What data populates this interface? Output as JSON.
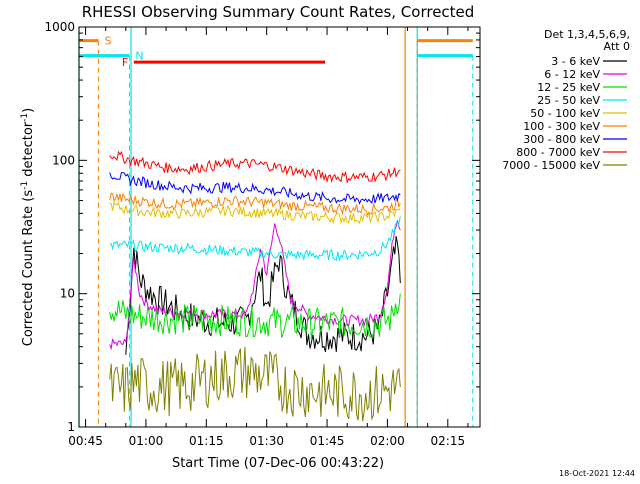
{
  "chart_data": {
    "type": "line",
    "title": "RHESSI Observing Summary Count Rates, Corrected",
    "xlabel": "Start Time (07-Dec-06 00:43:22)",
    "ylabel_main": "Corrected Count Rate (s",
    "ylabel_sup1": "-1",
    "ylabel_mid": " detector",
    "ylabel_sup2": "-1",
    "ylabel_end": ")",
    "y_scale": "log",
    "xlim_minutes": [
      43.37,
      143.0
    ],
    "ylim": [
      1,
      1000
    ],
    "x_ticks": [
      {
        "minute": 45,
        "label": "00:45"
      },
      {
        "minute": 60,
        "label": "01:00"
      },
      {
        "minute": 75,
        "label": "01:15"
      },
      {
        "minute": 90,
        "label": "01:30"
      },
      {
        "minute": 105,
        "label": "01:45"
      },
      {
        "minute": 120,
        "label": "02:00"
      },
      {
        "minute": 135,
        "label": "02:15"
      }
    ],
    "y_ticks": [
      {
        "value": 1,
        "label": "1"
      },
      {
        "value": 10,
        "label": "10"
      },
      {
        "value": 100,
        "label": "100"
      },
      {
        "value": 1000,
        "label": "1000"
      }
    ],
    "legend": {
      "position": "right",
      "header_line1": "Det 1,3,4,5,6,9,",
      "header_line2": "Att 0"
    },
    "flags": [
      {
        "label": "S",
        "color": "#ff7f00",
        "level": 790,
        "segments": [
          [
            43.37,
            48.2
          ],
          [
            127.4,
            141.2
          ]
        ],
        "line_minutes": [
          48.2,
          127.4
        ],
        "line_style": "dashed"
      },
      {
        "label": "N",
        "color": "#00e5ee",
        "level": 610,
        "segments": [
          [
            43.37,
            55.9
          ],
          [
            127.4,
            141.2
          ]
        ],
        "line_minutes": [
          55.9,
          141.2
        ],
        "line_style": "dashed"
      },
      {
        "label": "F",
        "color": "#ff0000",
        "level": 545,
        "segments": [
          [
            57.0,
            104.5
          ]
        ],
        "line_minutes": [],
        "line_style": "none"
      }
    ],
    "vertical_markers": [
      {
        "minute": 43.37,
        "color": "#00e5ee",
        "style": "solid"
      },
      {
        "minute": 56.3,
        "color": "#00e5ee",
        "style": "solid"
      },
      {
        "minute": 127.4,
        "color": "#00e5ee",
        "style": "solid"
      },
      {
        "minute": 124.4,
        "color": "#ff7f00",
        "style": "solid"
      }
    ],
    "series": [
      {
        "name": "3 - 6 keV",
        "color": "#000000",
        "x": [
          51,
          55,
          57,
          58.5,
          60,
          63,
          66,
          70,
          75,
          80,
          85,
          87,
          88.5,
          90,
          92,
          93,
          96,
          100,
          105,
          110,
          115,
          118,
          120,
          121.5,
          122.5,
          123.2
        ],
        "y": [
          null,
          3.5,
          22,
          13,
          11,
          9,
          8,
          6.8,
          6.3,
          6,
          6.2,
          10,
          14,
          8,
          14,
          18,
          8.5,
          5,
          4.8,
          4.8,
          4.8,
          5.5,
          10,
          18,
          22,
          12
        ]
      },
      {
        "name": "6 - 12 keV",
        "color": "#e000e0",
        "x": [
          51,
          55,
          57,
          58.5,
          60,
          63,
          66,
          70,
          75,
          80,
          85,
          87,
          88.5,
          90,
          92,
          93,
          96,
          100,
          105,
          110,
          115,
          118,
          120,
          121.5,
          122.5,
          123.2
        ],
        "y": [
          4.2,
          4.2,
          18,
          10,
          8.5,
          7.5,
          7.2,
          7.2,
          7,
          7,
          7,
          12,
          22,
          14,
          33,
          28,
          9,
          7,
          6.5,
          6.3,
          6.3,
          6.8,
          11,
          28,
          38,
          30
        ]
      },
      {
        "name": "12 - 25 keV",
        "color": "#00e000",
        "x": [
          51,
          55,
          60,
          65,
          70,
          80,
          90,
          100,
          110,
          118,
          121,
          122,
          123.2
        ],
        "y": [
          8,
          7,
          6.7,
          6.5,
          6.4,
          6.3,
          6.2,
          6.0,
          6.0,
          6.0,
          6.5,
          8.5,
          10
        ]
      },
      {
        "name": "25 - 50 keV",
        "color": "#00e5ee",
        "x": [
          51,
          55,
          60,
          65,
          70,
          75,
          80,
          85,
          90,
          95,
          100,
          105,
          110,
          115,
          118,
          120,
          122,
          123.2
        ],
        "y": [
          23,
          23,
          22.5,
          22,
          22,
          21.5,
          21,
          20.5,
          20,
          19.5,
          19.5,
          19.5,
          19.5,
          20,
          21,
          24,
          30,
          38
        ]
      },
      {
        "name": "50 - 100 keV",
        "color": "#e0c000",
        "x": [
          51,
          55,
          60,
          65,
          70,
          75,
          80,
          85,
          90,
          95,
          100,
          105,
          110,
          115,
          120,
          123.2
        ],
        "y": [
          46,
          43,
          41,
          40,
          40,
          41,
          42,
          41,
          40,
          39,
          38,
          37.5,
          37,
          37,
          38,
          42
        ]
      },
      {
        "name": "100 - 300 keV",
        "color": "#ff7f00",
        "x": [
          51,
          55,
          60,
          65,
          70,
          75,
          80,
          85,
          90,
          95,
          100,
          105,
          110,
          115,
          120,
          123.2
        ],
        "y": [
          54,
          51,
          49,
          47,
          47,
          48,
          50,
          49,
          48,
          46,
          45,
          44,
          43.5,
          43,
          44,
          48
        ]
      },
      {
        "name": "300 - 800 keV",
        "color": "#0000ff",
        "x": [
          51,
          55,
          60,
          65,
          70,
          75,
          80,
          85,
          90,
          95,
          100,
          105,
          110,
          115,
          120,
          123.2
        ],
        "y": [
          80,
          73,
          68,
          64,
          62,
          62,
          63,
          62,
          60,
          57,
          54,
          52,
          51,
          51,
          52,
          55
        ]
      },
      {
        "name": "800 - 7000 keV",
        "color": "#ff0000",
        "x": [
          51,
          55,
          60,
          65,
          70,
          75,
          80,
          85,
          90,
          95,
          100,
          105,
          110,
          115,
          120,
          123.2
        ],
        "y": [
          112,
          103,
          95,
          88,
          86,
          90,
          94,
          95,
          92,
          86,
          80,
          76,
          75,
          75,
          78,
          85
        ]
      },
      {
        "name": "7000 - 15000 keV",
        "color": "#808000",
        "x": [
          51,
          55,
          58,
          60,
          65,
          70,
          75,
          80,
          85,
          90,
          95,
          100,
          105,
          110,
          115,
          118,
          120,
          123.2
        ],
        "y": [
          1.9,
          1.9,
          2.2,
          2.0,
          2.0,
          2.0,
          2.3,
          2.5,
          2.6,
          2.4,
          2.0,
          1.9,
          1.8,
          1.8,
          1.8,
          1.8,
          1.9,
          2.0
        ]
      }
    ]
  },
  "footer_timestamp": "18-Oct-2021 12:44"
}
